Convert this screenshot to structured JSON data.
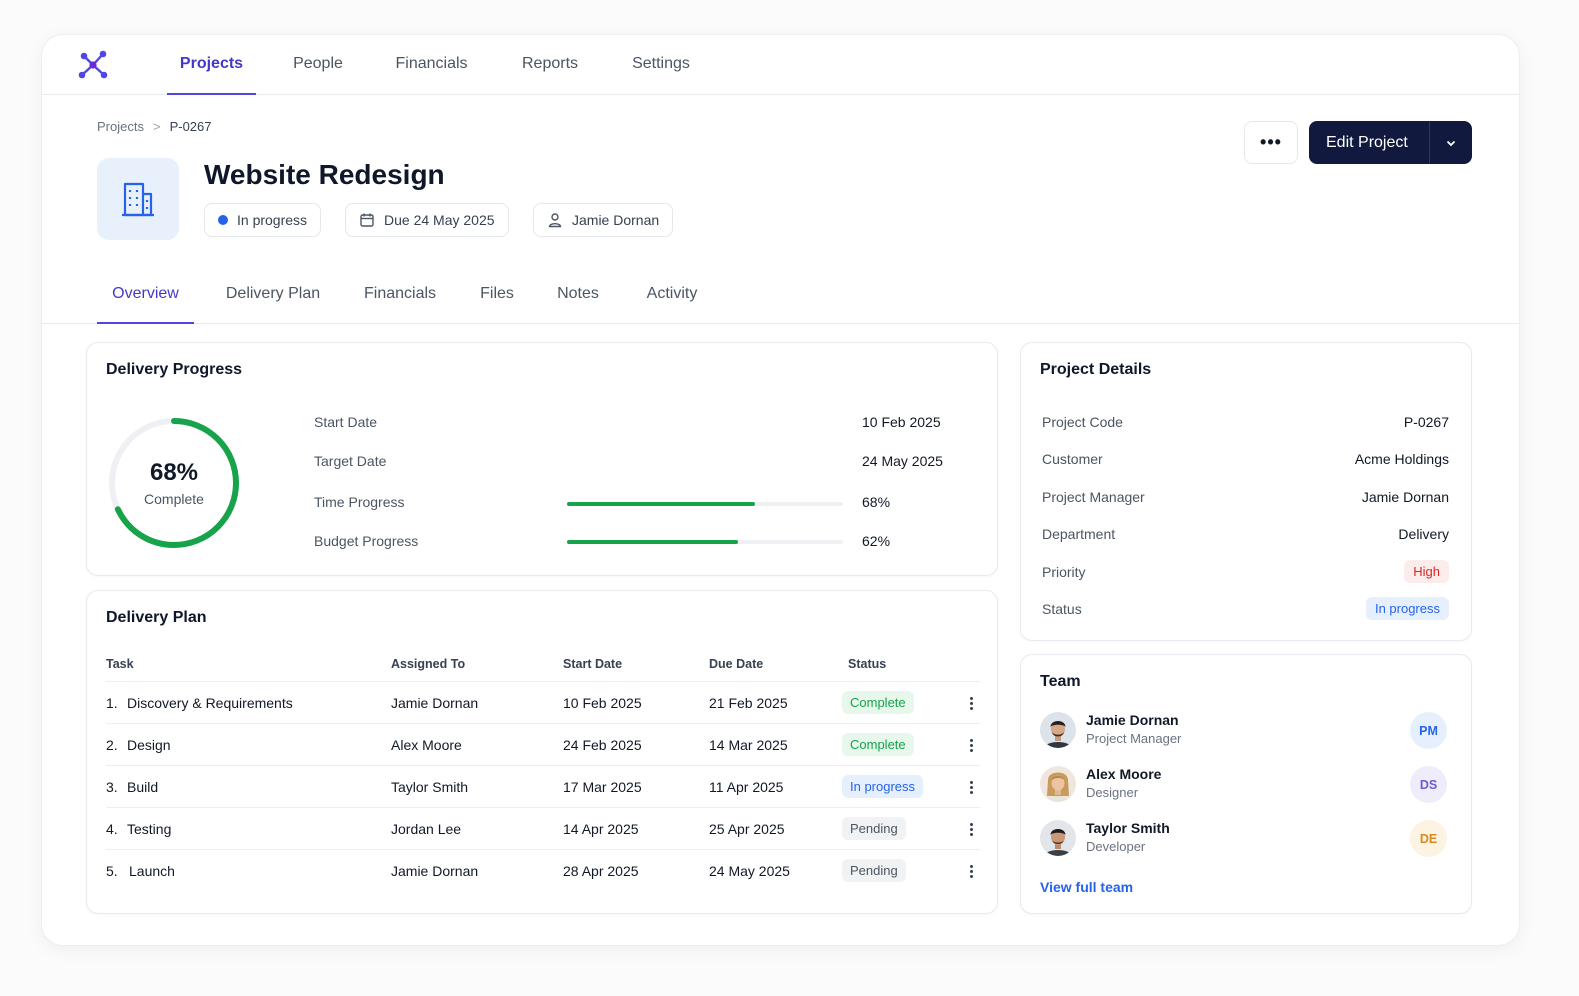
{
  "nav": {
    "items": [
      {
        "label": "Projects",
        "active": true
      },
      {
        "label": "People",
        "active": false
      },
      {
        "label": "Financials",
        "active": false
      },
      {
        "label": "Reports",
        "active": false
      },
      {
        "label": "Settings",
        "active": false
      }
    ]
  },
  "breadcrumb": {
    "root": "Projects",
    "separator": ">",
    "current": "P-0267"
  },
  "project": {
    "title": "Website Redesign",
    "status": "In progress",
    "due": "Due 24 May 2025",
    "owner": "Jamie Dornan"
  },
  "actions": {
    "more": "•••",
    "edit": "Edit Project"
  },
  "tabs": [
    {
      "label": "Overview",
      "active": true
    },
    {
      "label": "Delivery Plan",
      "active": false
    },
    {
      "label": "Financials",
      "active": false
    },
    {
      "label": "Files",
      "active": false
    },
    {
      "label": "Notes",
      "active": false
    },
    {
      "label": "Activity",
      "active": false
    }
  ],
  "progress": {
    "title": "Delivery Progress",
    "percent_label": "68%",
    "percent_value": 68,
    "caption": "Complete",
    "rows": [
      {
        "label": "Start Date",
        "value": "10 Feb 2025"
      },
      {
        "label": "Target Date",
        "value": "24 May 2025"
      },
      {
        "label": "Time Progress",
        "value": "68%",
        "fraction": 0.68
      },
      {
        "label": "Budget Progress",
        "value": "62%",
        "fraction": 0.62
      }
    ]
  },
  "plan": {
    "title": "Delivery Plan",
    "columns": [
      "Task",
      "Assigned To",
      "Start Date",
      "Due Date",
      "Status"
    ],
    "rows": [
      {
        "num": "1.",
        "task": "Discovery & Requirements",
        "assignee": "Jamie Dornan",
        "start": "10 Feb 2025",
        "due": "21 Feb 2025",
        "status": "Complete",
        "kind": "complete"
      },
      {
        "num": "2.",
        "task": "Design",
        "assignee": "Alex Moore",
        "start": "24 Feb 2025",
        "due": "14 Mar 2025",
        "status": "Complete",
        "kind": "complete"
      },
      {
        "num": "3.",
        "task": "Build",
        "assignee": "Taylor Smith",
        "start": "17 Mar 2025",
        "due": "11 Apr 2025",
        "status": "In progress",
        "kind": "progress"
      },
      {
        "num": "4.",
        "task": "Testing",
        "assignee": "Jordan Lee",
        "start": "14 Apr 2025",
        "due": "25 Apr 2025",
        "status": "Pending",
        "kind": "pending"
      },
      {
        "num": "5.",
        "task": "Launch",
        "assignee": "Jamie Dornan",
        "start": "28 Apr 2025",
        "due": "24 May 2025",
        "status": "Pending",
        "kind": "pending"
      }
    ]
  },
  "details": {
    "title": "Project Details",
    "rows": [
      {
        "label": "Project Code",
        "value": "P-0267"
      },
      {
        "label": "Customer",
        "value": "Acme Holdings"
      },
      {
        "label": "Project Manager",
        "value": "Jamie Dornan"
      },
      {
        "label": "Department",
        "value": "Delivery"
      },
      {
        "label": "Priority",
        "value": "High"
      },
      {
        "label": "Status",
        "value": "In progress"
      }
    ]
  },
  "team": {
    "title": "Team",
    "members": [
      {
        "name": "Jamie Dornan",
        "role": "Project Manager",
        "initials": "PM"
      },
      {
        "name": "Alex Moore",
        "role": "Designer",
        "initials": "DS"
      },
      {
        "name": "Taylor Smith",
        "role": "Developer",
        "initials": "DE"
      }
    ],
    "link": "View full team"
  },
  "colors": {
    "accent": "#4f46e5",
    "brand_dark": "#111a3e",
    "success": "#16a34a",
    "info": "#2563eb",
    "danger": "#dc2626"
  }
}
